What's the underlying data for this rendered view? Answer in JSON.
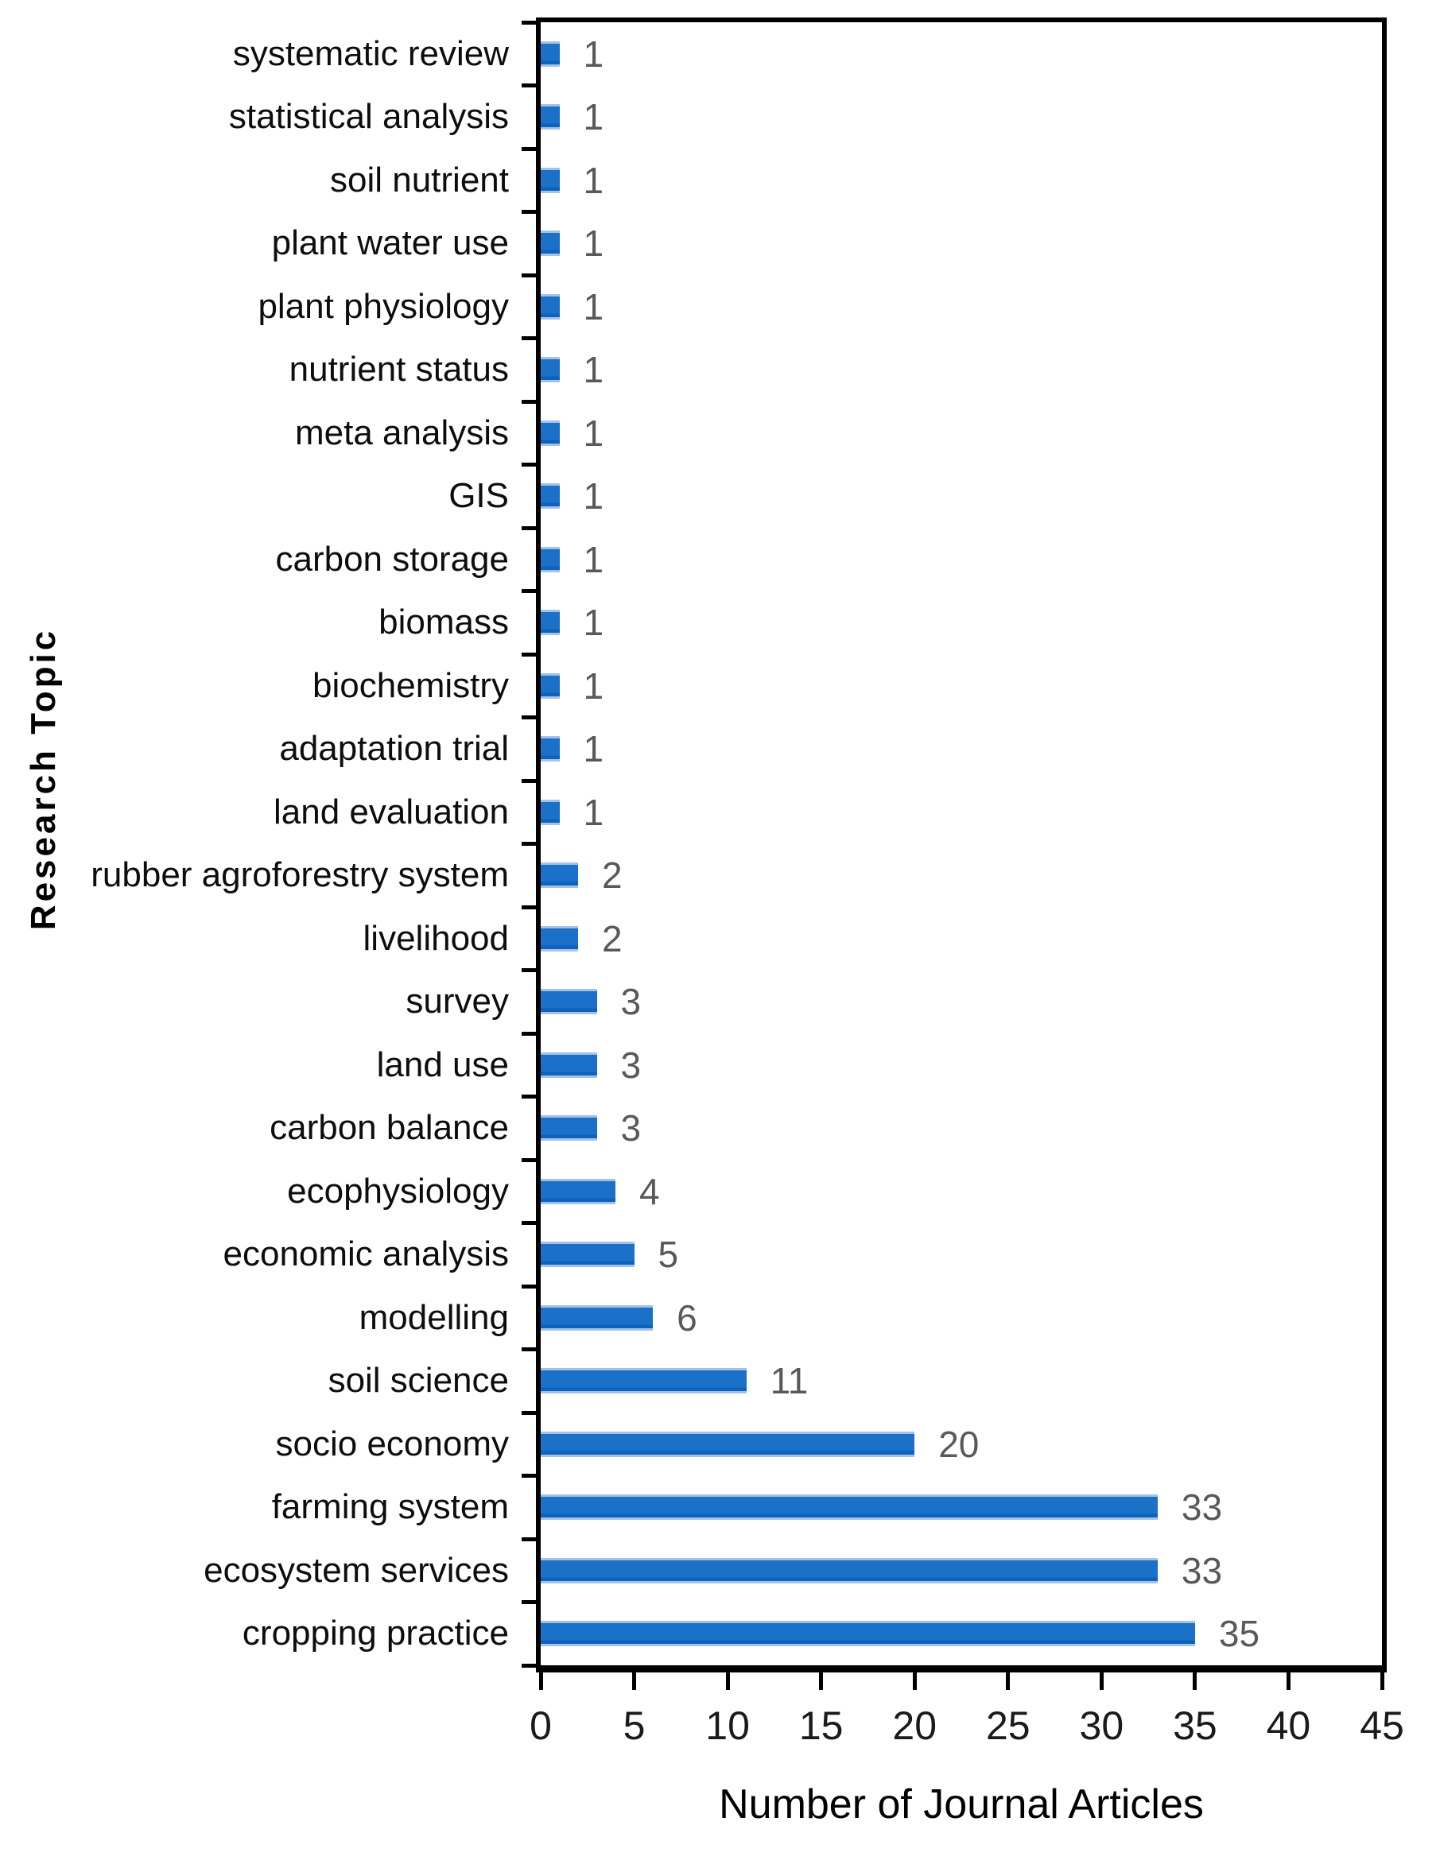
{
  "chart_data": {
    "type": "bar",
    "orientation": "horizontal",
    "title": "",
    "xlabel": "Number of Journal Articles",
    "ylabel": "Research Topic",
    "xlim": [
      0,
      45
    ],
    "xticks": [
      0,
      5,
      10,
      15,
      20,
      25,
      30,
      35,
      40,
      45
    ],
    "grid": false,
    "legend": "none",
    "categories": [
      "systematic review",
      "statistical analysis",
      "soil nutrient",
      "plant water use",
      "plant physiology",
      "nutrient status",
      "meta analysis",
      "GIS",
      "carbon storage",
      "biomass",
      "biochemistry",
      "adaptation trial",
      "land evaluation",
      "rubber agroforestry system",
      "livelihood",
      "survey",
      "land use",
      "carbon balance",
      "ecophysiology",
      "economic analysis",
      "modelling",
      "soil science",
      "socio economy",
      "farming system",
      "ecosystem services",
      "cropping practice"
    ],
    "values": [
      1,
      1,
      1,
      1,
      1,
      1,
      1,
      1,
      1,
      1,
      1,
      1,
      1,
      2,
      2,
      3,
      3,
      3,
      4,
      5,
      6,
      11,
      20,
      33,
      33,
      35
    ],
    "colors": {
      "bar_core": "#1B70C8",
      "bar_edge_light": "#A4C2E8",
      "bar_edge_dark": "#0D63BC",
      "value_label": "#595959",
      "axis": "#000000",
      "category_label": "#0d0d0d",
      "tick_label": "#1a1a1a",
      "background": "#ffffff"
    }
  }
}
